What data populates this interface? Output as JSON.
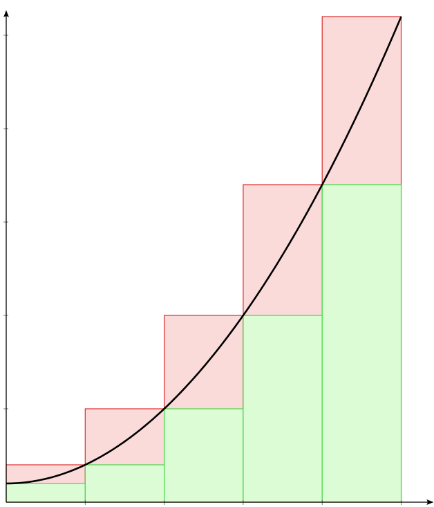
{
  "chart_data": {
    "type": "area",
    "title": "",
    "xlabel": "",
    "ylabel": "",
    "function": "y = 1 + x^2",
    "x": [
      0,
      1,
      2,
      3,
      4,
      5
    ],
    "y": [
      1,
      2,
      5,
      10,
      17,
      26
    ],
    "xlim": [
      0,
      5.4
    ],
    "ylim": [
      0,
      26.3
    ],
    "x_ticks": [
      1,
      2,
      3,
      4,
      5
    ],
    "y_ticks": [
      5,
      10,
      15,
      20,
      25
    ],
    "show_tick_labels": false,
    "grid": false,
    "series": [
      {
        "kind": "upper-sum-rectangles",
        "color": "#dd2b2b",
        "fill": "#fbdada",
        "x_left": [
          0,
          1,
          2,
          3,
          4
        ],
        "x_right": [
          1,
          2,
          3,
          4,
          5
        ],
        "heights": [
          2,
          5,
          10,
          17,
          26
        ]
      },
      {
        "kind": "lower-sum-rectangles",
        "color": "#46d646",
        "fill": "#dcfcd6",
        "x_left": [
          0,
          1,
          2,
          3,
          4
        ],
        "x_right": [
          1,
          2,
          3,
          4,
          5
        ],
        "heights": [
          1,
          2,
          5,
          10,
          17
        ]
      },
      {
        "kind": "curve",
        "color": "#000000",
        "domain": [
          0,
          5
        ]
      }
    ]
  }
}
